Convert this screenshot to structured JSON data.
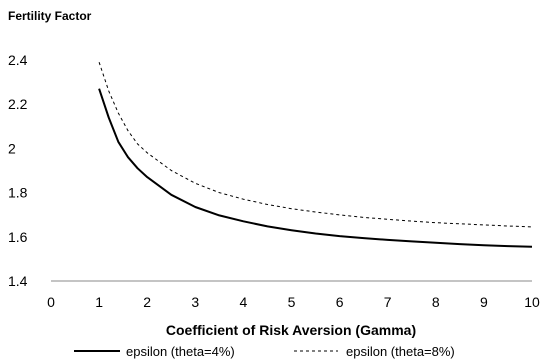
{
  "chart_data": {
    "type": "line",
    "title": "",
    "ylabel": "Fertility Factor",
    "xlabel": "Coefficient of Risk Aversion (Gamma)",
    "xlim": [
      0,
      10
    ],
    "ylim": [
      1.4,
      2.4
    ],
    "x_ticks": [
      0,
      1,
      2,
      3,
      4,
      5,
      6,
      7,
      8,
      9,
      10
    ],
    "y_ticks": [
      1.4,
      1.6,
      1.8,
      2,
      2.2,
      2.4
    ],
    "grid": false,
    "legend_position": "bottom",
    "series": [
      {
        "name": "epsilon (theta=4%)",
        "style": "solid",
        "color": "#000000",
        "x": [
          1,
          1.2,
          1.4,
          1.6,
          1.8,
          2,
          2.5,
          3,
          3.5,
          4,
          4.5,
          5,
          5.5,
          6,
          6.5,
          7,
          7.5,
          8,
          8.5,
          9,
          9.5,
          10
        ],
        "y": [
          2.27,
          2.14,
          2.03,
          1.96,
          1.91,
          1.87,
          1.79,
          1.735,
          1.697,
          1.67,
          1.647,
          1.63,
          1.615,
          1.603,
          1.594,
          1.586,
          1.579,
          1.573,
          1.567,
          1.562,
          1.558,
          1.555
        ]
      },
      {
        "name": "epsilon (theta=8%)",
        "style": "dashed",
        "color": "#000000",
        "x": [
          1,
          1.2,
          1.4,
          1.6,
          1.8,
          2,
          2.5,
          3,
          3.5,
          4,
          4.5,
          5,
          5.5,
          6,
          6.5,
          7,
          7.5,
          8,
          8.5,
          9,
          9.5,
          10
        ],
        "y": [
          2.39,
          2.26,
          2.16,
          2.08,
          2.02,
          1.98,
          1.9,
          1.842,
          1.8,
          1.77,
          1.746,
          1.727,
          1.712,
          1.699,
          1.688,
          1.679,
          1.671,
          1.664,
          1.659,
          1.654,
          1.649,
          1.645
        ]
      }
    ]
  }
}
